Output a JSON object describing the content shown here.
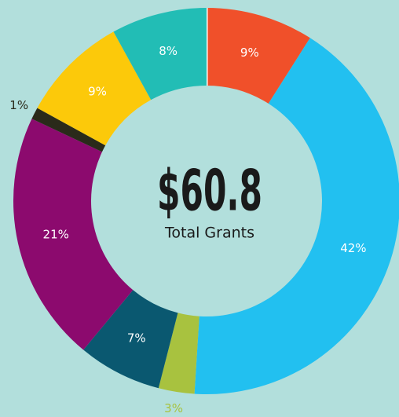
{
  "chart_data": {
    "type": "donut",
    "center_value": "$60.8",
    "center_label": "Total Grants",
    "categories": [
      null,
      null,
      null,
      null,
      null,
      null,
      null,
      null
    ],
    "values": [
      9,
      42,
      3,
      7,
      21,
      1,
      9,
      8
    ],
    "value_labels": [
      "9%",
      "42%",
      "3%",
      "7%",
      "21%",
      "1%",
      "9%",
      "8%"
    ],
    "colors": [
      "#f0502a",
      "#22c0f0",
      "#a8c23f",
      "#0a5870",
      "#8c0a6e",
      "#2a2a1a",
      "#fcc90a",
      "#22bdb5"
    ]
  }
}
